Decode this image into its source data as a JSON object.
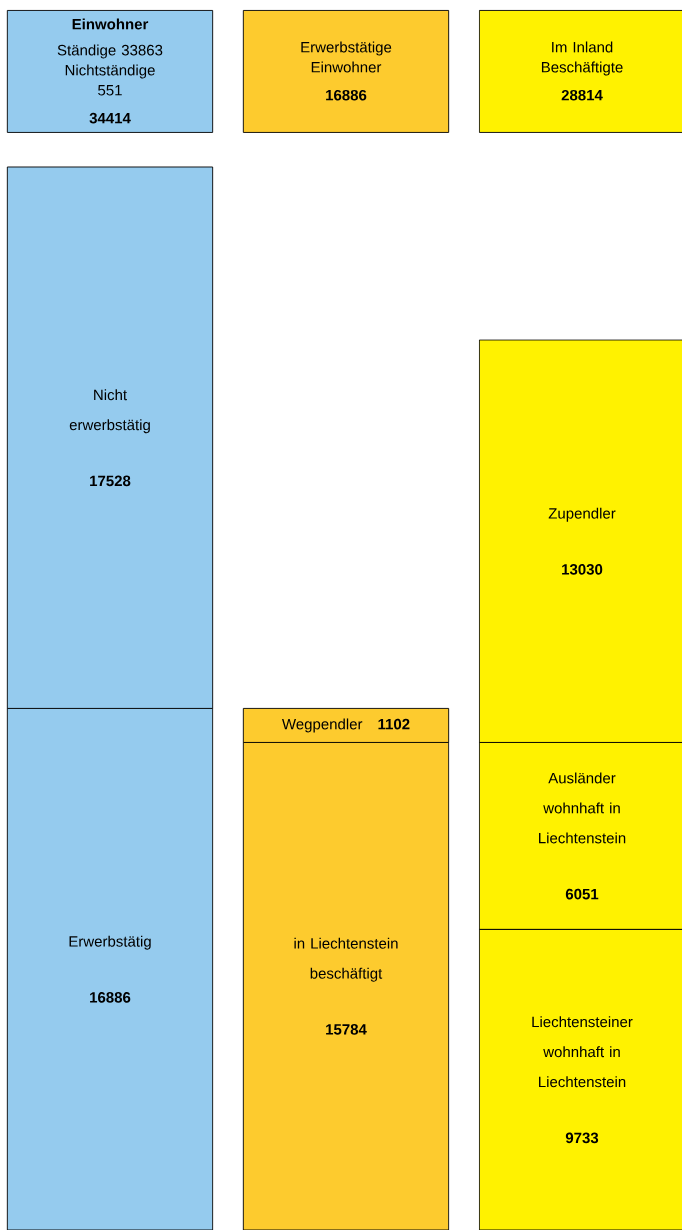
{
  "chart_data": {
    "type": "bar",
    "stacked": true,
    "data_labels": true,
    "categories": [
      null,
      null,
      null
    ],
    "annotations": [
      "Einwohner",
      "Ständige 33863",
      "Nichtständige 551",
      "34414",
      "Erwerbstätige Einwohner",
      "16886",
      "Im Inland Beschäftigte",
      "28814"
    ],
    "series": [
      {
        "name": "Erwerbstätig",
        "color": "#95cbee",
        "values": [
          16886,
          null,
          null
        ]
      },
      {
        "name": "Nicht erwerbstätig",
        "color": "#95cbee",
        "values": [
          17528,
          null,
          null
        ]
      },
      {
        "name": "in Liechtenstein beschäftigt",
        "color": "#fdcb2e",
        "values": [
          null,
          15784,
          null
        ]
      },
      {
        "name": "Wegpendler",
        "color": "#fdcb2e",
        "values": [
          null,
          1102,
          null
        ]
      },
      {
        "name": "Liechtensteiner wohnhaft in Liechtenstein",
        "color": "#fff200",
        "values": [
          null,
          null,
          9733
        ]
      },
      {
        "name": "Ausländer wohnhaft in Liechtenstein",
        "color": "#fff200",
        "values": [
          null,
          null,
          6051
        ]
      },
      {
        "name": "Zupendler",
        "color": "#fff200",
        "values": [
          null,
          null,
          13030
        ]
      }
    ]
  }
}
